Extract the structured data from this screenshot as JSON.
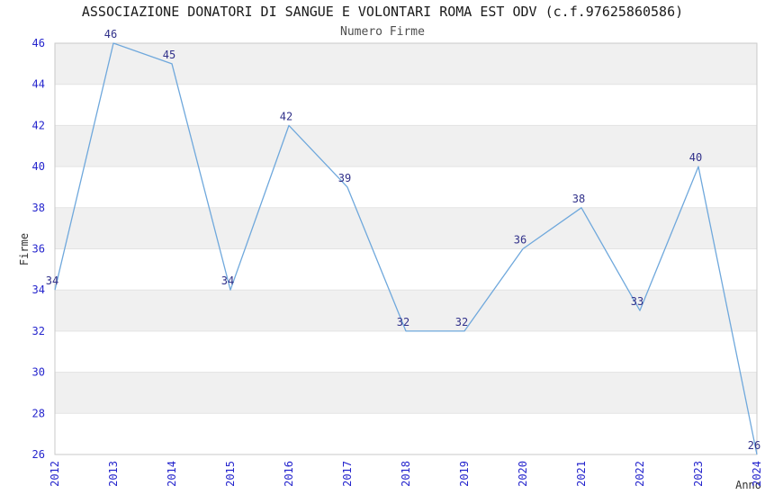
{
  "header": {
    "title": "ASSOCIAZIONE DONATORI DI SANGUE E VOLONTARI ROMA EST ODV (c.f.97625860586)",
    "subtitle": "Numero Firme"
  },
  "chart_data": {
    "type": "line",
    "x": [
      2012,
      2013,
      2014,
      2015,
      2016,
      2017,
      2018,
      2019,
      2020,
      2021,
      2022,
      2023,
      2024
    ],
    "series": [
      {
        "name": "Numero Firme",
        "values": [
          34,
          46,
          45,
          34,
          42,
          39,
          32,
          32,
          36,
          38,
          33,
          40,
          26
        ]
      }
    ],
    "title": "Numero Firme",
    "xlabel": "Anno",
    "ylabel": "Firme",
    "ylim": [
      26,
      46
    ],
    "ytick_step": 2,
    "yticks": [
      26,
      28,
      30,
      32,
      34,
      36,
      38,
      40,
      42,
      44,
      46
    ],
    "grid": "horizontal-alternating-bands",
    "legend_position": "none",
    "point_markers": false,
    "data_labels_visible": true,
    "colors": {
      "line": "#6fa8dc",
      "band_fill": "#f0f0f0",
      "band_alt_fill": "#ffffff",
      "band_border": "#e3e3e3",
      "plot_border": "#c9c9c9",
      "tick_label": "#2525cd",
      "point_label": "#31318a",
      "axis_title": "#303030",
      "title": "#1a1a1a",
      "subtitle": "#4d4d4d"
    }
  }
}
